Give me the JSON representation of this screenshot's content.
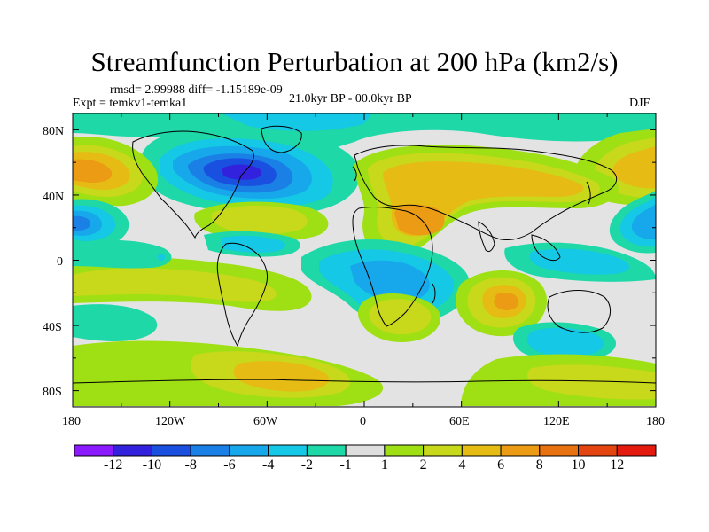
{
  "title": "Streamfunction Perturbation at 200 hPa (km2/s)",
  "stats": "rmsd= 2.99988 diff= -1.15189e-09",
  "experiment": "Expt = temkv1-temka1",
  "period": "21.0kyr BP - 00.0kyr BP",
  "season": "DJF",
  "map": {
    "lat_ticks": [
      "80N",
      "40N",
      "0",
      "40S",
      "80S"
    ],
    "lon_ticks": [
      "180",
      "120W",
      "60W",
      "0",
      "60E",
      "120E",
      "180"
    ],
    "lat_range": [
      -90,
      90
    ],
    "lon_range": [
      -180,
      180
    ]
  },
  "colorbar": {
    "labels": [
      "-12",
      "-10",
      "-8",
      "-6",
      "-4",
      "-2",
      "-1",
      "1",
      "2",
      "4",
      "6",
      "8",
      "10",
      "12"
    ],
    "colors": [
      "#8c1aff",
      "#3322dd",
      "#1a50e0",
      "#1a80e6",
      "#16a8ea",
      "#14c8e6",
      "#1ed8a8",
      "#dedede",
      "#9ee014",
      "#c8d81a",
      "#e6bc14",
      "#eb9b14",
      "#e8720f",
      "#e44410",
      "#e41a0f"
    ]
  },
  "palette": {
    "background": "#e3e3e3",
    "c_m1": "#1ed8a8",
    "c_m2": "#14c8e6",
    "c_m4": "#16a8ea",
    "c_m6": "#1a80e6",
    "c_m8": "#1a50e0",
    "c_m10": "#3322dd",
    "c_p1": "#9ee014",
    "c_p2": "#c8d81a",
    "c_p4": "#e6bc14",
    "c_p6": "#eb9b14"
  }
}
